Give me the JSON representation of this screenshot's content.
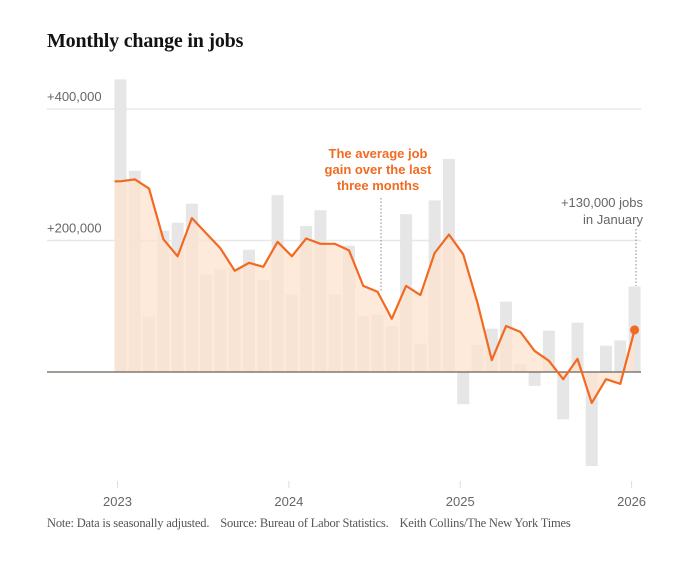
{
  "title": "Monthly change in jobs",
  "note": {
    "note": "Note: Data is seasonally adjusted.",
    "source": "Source: Bureau of Labor Statistics.",
    "credit": "Keith Collins/The New York Times"
  },
  "chart_data": {
    "type": "bar",
    "title": "Monthly change in jobs",
    "xlabel": "",
    "ylabel": "",
    "ylim": [
      -160000,
      450000
    ],
    "y_ticks": [
      {
        "value": 400000,
        "label": "+400,000"
      },
      {
        "value": 200000,
        "label": "+200,000"
      }
    ],
    "x_ticks": [
      {
        "month_index": 0,
        "label": "2023"
      },
      {
        "month_index": 12,
        "label": "2024"
      },
      {
        "month_index": 24,
        "label": "2025"
      },
      {
        "month_index": 36,
        "label": "2026"
      }
    ],
    "grid": true,
    "categories": [
      "2023-01",
      "2023-02",
      "2023-03",
      "2023-04",
      "2023-05",
      "2023-06",
      "2023-07",
      "2023-08",
      "2023-09",
      "2023-10",
      "2023-11",
      "2023-12",
      "2024-01",
      "2024-02",
      "2024-03",
      "2024-04",
      "2024-05",
      "2024-06",
      "2024-07",
      "2024-08",
      "2024-09",
      "2024-10",
      "2024-11",
      "2024-12",
      "2025-01",
      "2025-02",
      "2025-03",
      "2025-04",
      "2025-05",
      "2025-06",
      "2025-07",
      "2025-08",
      "2025-09",
      "2025-10",
      "2025-11",
      "2025-12",
      "2026-01"
    ],
    "series": [
      {
        "kind": "bar",
        "color": "#e6e6e6",
        "values": [
          445000,
          306000,
          84000,
          215000,
          227000,
          256000,
          148000,
          156000,
          157000,
          186000,
          140000,
          269000,
          118000,
          222000,
          246000,
          118000,
          192000,
          85000,
          87000,
          70000,
          240000,
          43000,
          261000,
          324000,
          -49000,
          41000,
          66000,
          107000,
          12000,
          -21000,
          63000,
          -72000,
          75000,
          -143000,
          40000,
          48000,
          130000
        ]
      },
      {
        "kind": "line",
        "color": "#f26a21",
        "fill": "#fde3cf",
        "values": [
          290000,
          293000,
          279000,
          202000,
          176000,
          234000,
          211000,
          188000,
          154000,
          166000,
          160000,
          198000,
          176000,
          203000,
          195000,
          195000,
          185000,
          131000,
          122000,
          81000,
          131000,
          117000,
          181000,
          209000,
          179000,
          105000,
          18000,
          70000,
          61000,
          32000,
          17000,
          -11000,
          20000,
          -47000,
          -11000,
          -18000,
          64000
        ]
      }
    ],
    "annotations": [
      {
        "text_lines": [
          "The average job",
          "gain over the last",
          "three months"
        ],
        "color": "#f26a21",
        "month_index": 19
      },
      {
        "text_lines": [
          "+130,000 jobs",
          "in January"
        ],
        "color": "#666666",
        "month_index": 36
      }
    ]
  }
}
